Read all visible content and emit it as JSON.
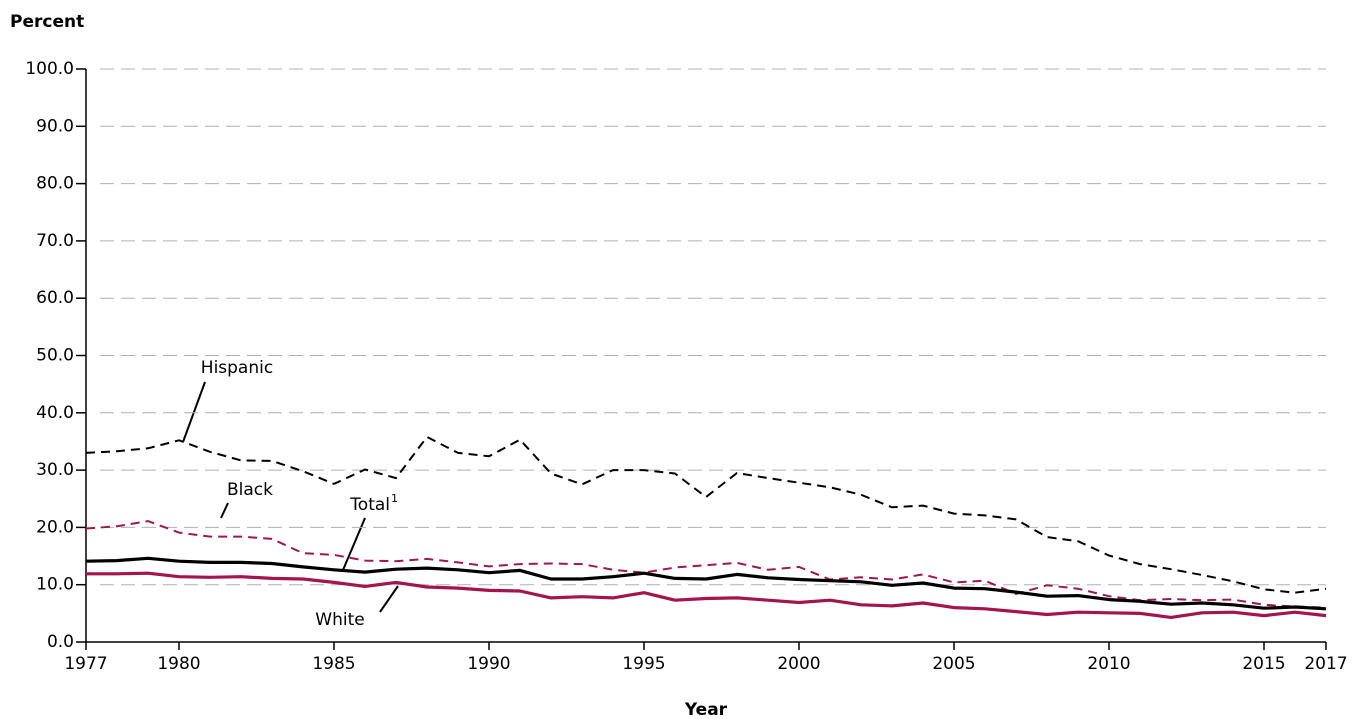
{
  "chart_data": {
    "type": "line",
    "ylabel": "Percent",
    "xlabel": "Year",
    "x": [
      1977,
      1978,
      1979,
      1980,
      1981,
      1982,
      1983,
      1984,
      1985,
      1986,
      1987,
      1988,
      1989,
      1990,
      1991,
      1992,
      1993,
      1994,
      1995,
      1996,
      1997,
      1998,
      1999,
      2000,
      2001,
      2002,
      2003,
      2004,
      2005,
      2006,
      2007,
      2008,
      2009,
      2010,
      2011,
      2012,
      2013,
      2014,
      2015,
      2016,
      2017
    ],
    "series": [
      {
        "name": "Hispanic",
        "color": "#000000",
        "dashed": true,
        "values": [
          33.0,
          33.3,
          33.8,
          35.2,
          33.2,
          31.7,
          31.6,
          29.8,
          27.6,
          30.1,
          28.6,
          35.8,
          33.0,
          32.4,
          35.3,
          29.4,
          27.5,
          30.0,
          30.0,
          29.4,
          25.3,
          29.5,
          28.6,
          27.8,
          27.0,
          25.7,
          23.5,
          23.8,
          22.4,
          22.1,
          21.4,
          18.3,
          17.6,
          15.1,
          13.6,
          12.7,
          11.7,
          10.6,
          9.2,
          8.6,
          9.3
        ]
      },
      {
        "name": "Black",
        "color": "#a3154c",
        "dashed": true,
        "values": [
          19.8,
          20.2,
          21.1,
          19.1,
          18.4,
          18.4,
          18.0,
          15.5,
          15.2,
          14.2,
          14.1,
          14.5,
          13.9,
          13.2,
          13.6,
          13.7,
          13.6,
          12.6,
          12.1,
          13.0,
          13.4,
          13.8,
          12.6,
          13.1,
          10.9,
          11.3,
          10.9,
          11.8,
          10.4,
          10.7,
          8.4,
          9.9,
          9.3,
          8.0,
          7.3,
          7.5,
          7.3,
          7.4,
          6.5,
          6.2,
          6.0
        ]
      },
      {
        "name": "Total",
        "note_mark": "1",
        "color": "#000000",
        "dashed": false,
        "values": [
          14.1,
          14.2,
          14.6,
          14.1,
          13.9,
          13.9,
          13.7,
          13.1,
          12.6,
          12.2,
          12.7,
          12.9,
          12.6,
          12.1,
          12.5,
          11.0,
          11.0,
          11.4,
          12.0,
          11.1,
          11.0,
          11.8,
          11.2,
          10.9,
          10.7,
          10.5,
          9.9,
          10.3,
          9.4,
          9.3,
          8.7,
          8.0,
          8.1,
          7.4,
          7.1,
          6.6,
          6.8,
          6.5,
          5.9,
          6.1,
          5.8
        ]
      },
      {
        "name": "White",
        "color": "#a3154c",
        "dashed": false,
        "values": [
          11.9,
          11.9,
          12.0,
          11.4,
          11.3,
          11.4,
          11.1,
          11.0,
          10.4,
          9.7,
          10.4,
          9.6,
          9.4,
          9.0,
          8.9,
          7.7,
          7.9,
          7.7,
          8.6,
          7.3,
          7.6,
          7.7,
          7.3,
          6.9,
          7.3,
          6.5,
          6.3,
          6.8,
          6.0,
          5.8,
          5.3,
          4.8,
          5.2,
          5.1,
          5.0,
          4.3,
          5.1,
          5.2,
          4.6,
          5.2,
          4.6
        ]
      }
    ],
    "xlim": [
      1977,
      2017
    ],
    "xticks": [
      1977,
      1980,
      1985,
      1990,
      1995,
      2000,
      2005,
      2010,
      2015,
      2017
    ],
    "ylim": [
      0,
      100
    ],
    "yticks": [
      {
        "value": 0,
        "label": "0.0"
      },
      {
        "value": 10,
        "label": "10.0"
      },
      {
        "value": 20,
        "label": "20.0"
      },
      {
        "value": 30,
        "label": "30.0"
      },
      {
        "value": 40,
        "label": "40.0"
      },
      {
        "value": 50,
        "label": "50.0"
      },
      {
        "value": 60,
        "label": "60.0"
      },
      {
        "value": 70,
        "label": "70.0"
      },
      {
        "value": 80,
        "label": "80.0"
      },
      {
        "value": 90,
        "label": "90.0"
      },
      {
        "value": 100,
        "label": "100.0"
      }
    ],
    "grid": true
  }
}
